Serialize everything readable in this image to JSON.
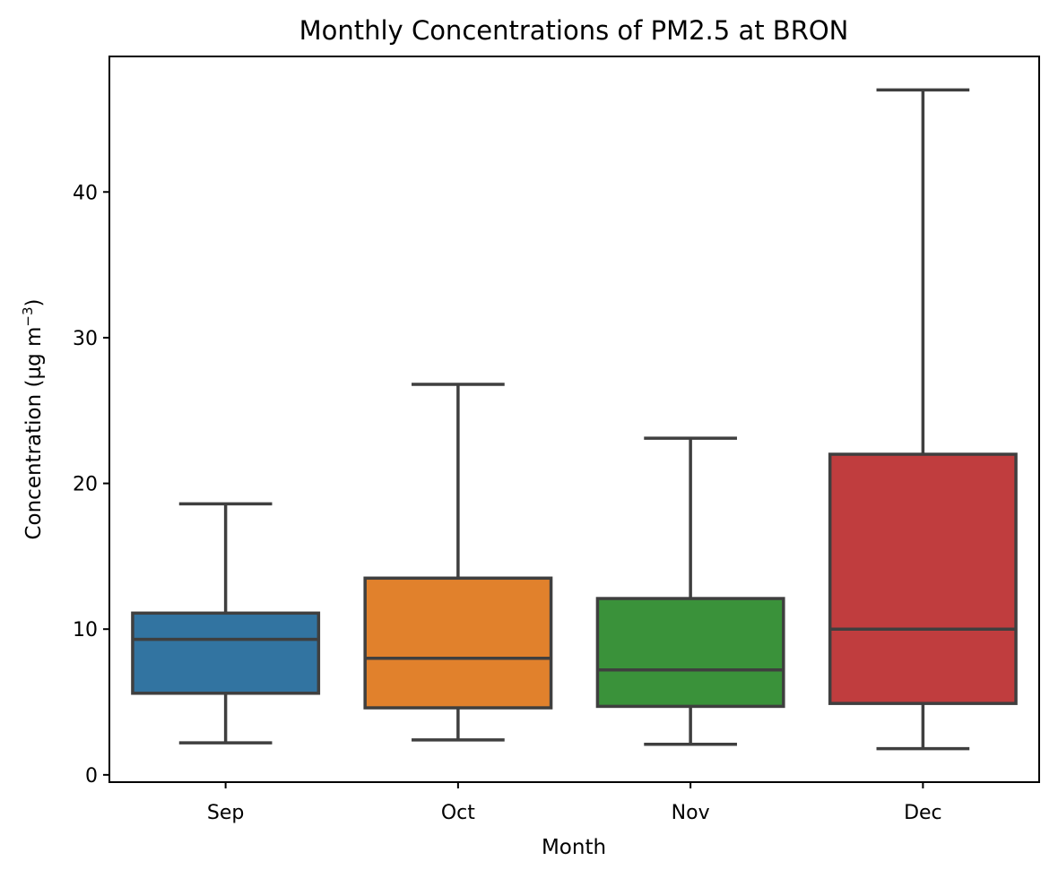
{
  "chart_data": {
    "type": "box",
    "title": "Monthly Concentrations of PM2.5 at BRON",
    "xlabel": "Month",
    "ylabel": "Concentration (µg m",
    "ylabel_sup": "−3",
    "ylabel_close": ")",
    "ylim": [
      -0.5,
      49.3
    ],
    "yticks": [
      0,
      10,
      20,
      30,
      40
    ],
    "grid": false,
    "categories": [
      "Sep",
      "Oct",
      "Nov",
      "Dec"
    ],
    "series": [
      {
        "category": "Sep",
        "whisker_low": 2.2,
        "q1": 5.6,
        "median": 9.3,
        "q3": 11.1,
        "whisker_high": 18.6,
        "color": "#3274a1"
      },
      {
        "category": "Oct",
        "whisker_low": 2.4,
        "q1": 4.6,
        "median": 8.0,
        "q3": 13.5,
        "whisker_high": 26.8,
        "color": "#e1812c"
      },
      {
        "category": "Nov",
        "whisker_low": 2.1,
        "q1": 4.7,
        "median": 7.2,
        "q3": 12.1,
        "whisker_high": 23.1,
        "color": "#3a923a"
      },
      {
        "category": "Dec",
        "whisker_low": 1.8,
        "q1": 4.9,
        "median": 10.0,
        "q3": 22.0,
        "whisker_high": 47.0,
        "color": "#c03d3e"
      }
    ]
  }
}
